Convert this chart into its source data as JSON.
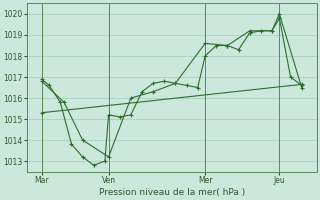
{
  "xlabel": "Pression niveau de la mer( hPa )",
  "background_color": "#cce8dc",
  "grid_color": "#aad0c0",
  "line_color": "#2d6e2d",
  "vline_color": "#5a8a5a",
  "ylim": [
    1012.5,
    1020.5
  ],
  "xlim": [
    0,
    78
  ],
  "yticks": [
    1013,
    1014,
    1015,
    1016,
    1017,
    1018,
    1019,
    1020
  ],
  "xtick_labels": [
    "Mar",
    "Ven",
    "Mer",
    "Jeu"
  ],
  "xtick_positions": [
    4,
    22,
    48,
    68
  ],
  "vlines": [
    4,
    22,
    48,
    68
  ],
  "line1_x": [
    4,
    6,
    9,
    12,
    15,
    18,
    21,
    22,
    25,
    28,
    31,
    34,
    37,
    40,
    43,
    46,
    48,
    51,
    54,
    57,
    60,
    63,
    66,
    68,
    71,
    74
  ],
  "line1_y": [
    1016.9,
    1016.6,
    1015.8,
    1013.8,
    1013.2,
    1012.8,
    1013.0,
    1015.2,
    1015.1,
    1015.2,
    1016.3,
    1016.7,
    1016.8,
    1016.7,
    1016.6,
    1016.5,
    1018.0,
    1018.5,
    1018.5,
    1018.3,
    1019.1,
    1019.2,
    1019.2,
    1019.8,
    1017.0,
    1016.6
  ],
  "line2_x": [
    4,
    10,
    15,
    22,
    28,
    34,
    40,
    48,
    54,
    60,
    66,
    68,
    74
  ],
  "line2_y": [
    1016.8,
    1015.8,
    1014.0,
    1013.2,
    1016.0,
    1016.3,
    1016.7,
    1018.6,
    1018.5,
    1019.2,
    1019.2,
    1020.0,
    1016.5
  ],
  "line3_x": [
    4,
    74
  ],
  "line3_y": [
    1015.3,
    1016.65
  ]
}
